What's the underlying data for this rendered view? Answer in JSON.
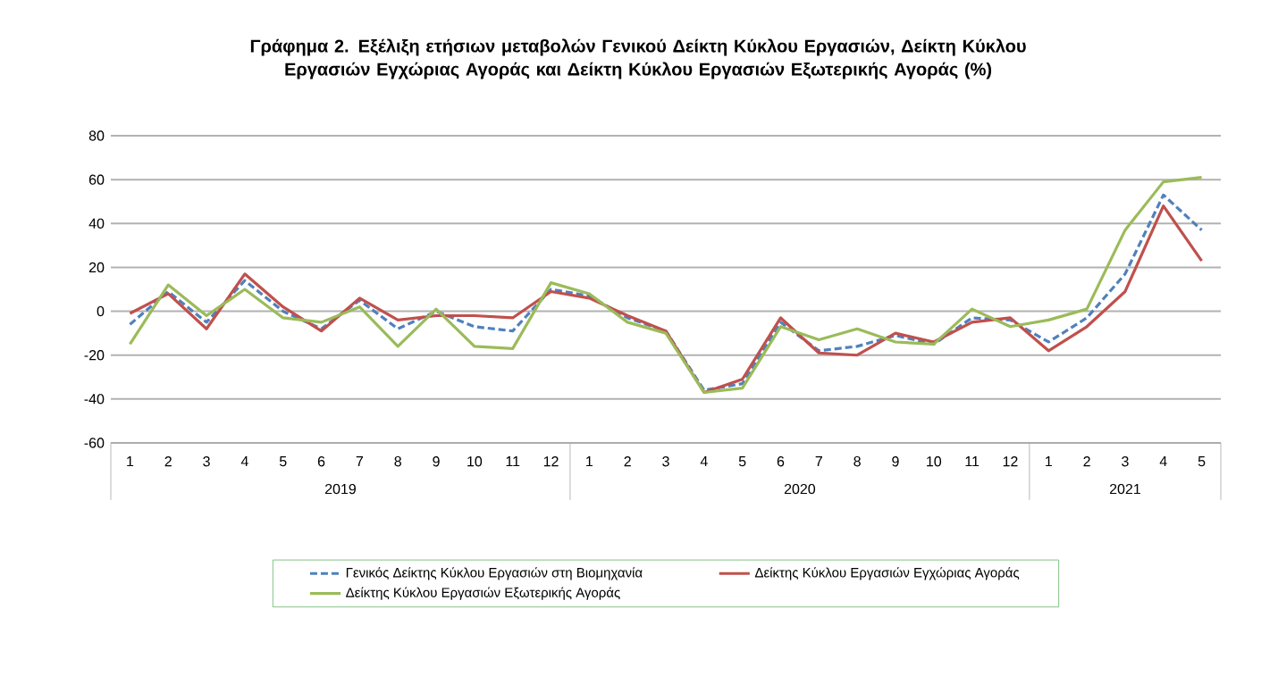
{
  "chart_data": {
    "type": "line",
    "title": "Γράφημα 2. Εξέλιξη ετήσιων μεταβολών Γενικού Δείκτη Κύκλου Εργασιών,  Δείκτη Κύκλου Εργασιών Εγχώριας Αγοράς και Δείκτη Κύκλου Εργασιών Εξωτερικής Αγοράς (%)",
    "categories": [
      "1",
      "2",
      "3",
      "4",
      "5",
      "6",
      "7",
      "8",
      "9",
      "10",
      "11",
      "12",
      "1",
      "2",
      "3",
      "4",
      "5",
      "6",
      "7",
      "8",
      "9",
      "10",
      "11",
      "12",
      "1",
      "2",
      "3",
      "4",
      "5"
    ],
    "series": [
      {
        "name": "Γενικός Δείκτης Κύκλου Εργασιών στη Βιομηχανία",
        "color": "#4f81bd",
        "line_style": "dashed",
        "values": [
          -6,
          9,
          -5,
          14,
          0,
          -8,
          5,
          -8,
          0,
          -7,
          -9,
          10,
          7,
          -3,
          -9,
          -36,
          -33,
          -5,
          -18,
          -16,
          -11,
          -15,
          -3,
          -4,
          -14,
          -3,
          17,
          53,
          37
        ]
      },
      {
        "name": "Δείκτης Κύκλου Εργασιών Εγχώριας Αγοράς",
        "color": "#c0504d",
        "line_style": "solid",
        "values": [
          -1,
          8,
          -8,
          17,
          2,
          -9,
          6,
          -4,
          -2,
          -2,
          -3,
          9,
          6,
          -2,
          -9,
          -37,
          -31,
          -3,
          -19,
          -20,
          -10,
          -14,
          -5,
          -3,
          -18,
          -7,
          9,
          48,
          23
        ]
      },
      {
        "name": "Δείκτης Κύκλου Εργασιών Εξωτερικής Αγοράς",
        "color": "#9bbb59",
        "line_style": "solid",
        "values": [
          -15,
          12,
          -2,
          10,
          -3,
          -5,
          2,
          -16,
          1,
          -16,
          -17,
          13,
          8,
          -5,
          -10,
          -37,
          -35,
          -7,
          -13,
          -8,
          -14,
          -15,
          1,
          -7,
          -4,
          1,
          37,
          59,
          61
        ]
      }
    ],
    "annotations": [
      "2019",
      "2020",
      "2021"
    ],
    "ylim": [
      -60,
      80
    ],
    "yticks": [
      -60,
      -40,
      -20,
      0,
      20,
      40,
      60,
      80
    ],
    "grid": "y",
    "legend": "bottom",
    "marker": "none"
  }
}
